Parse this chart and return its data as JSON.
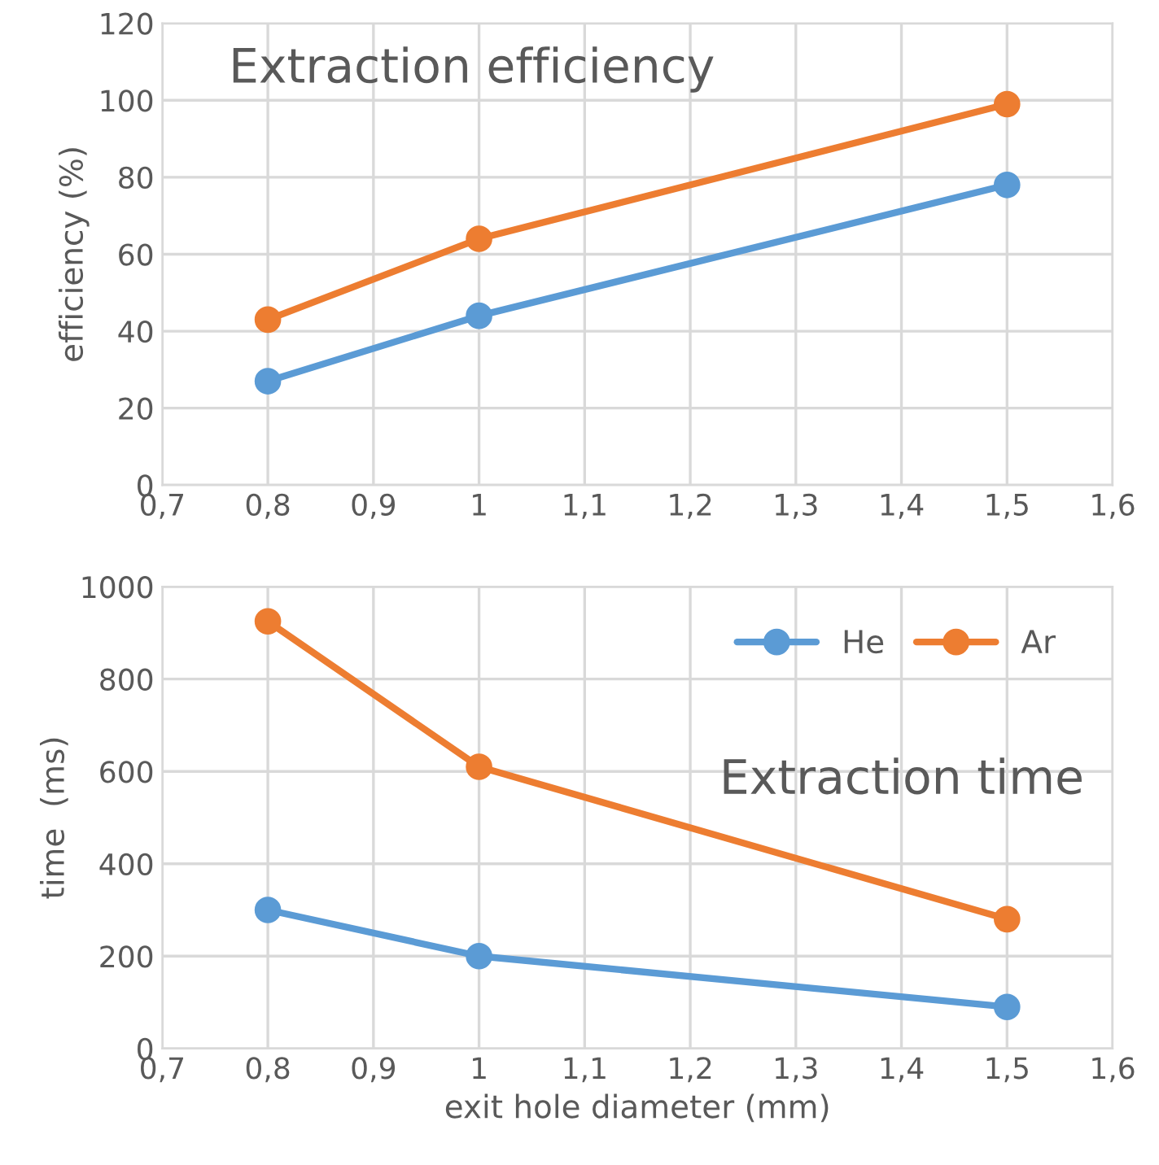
{
  "chart_data": [
    {
      "type": "line",
      "title": "Extraction efficiency",
      "ylabel": "efficiency (%)",
      "x": [
        0.8,
        1,
        1.5
      ],
      "series": [
        {
          "color": "#5b9bd5",
          "values": [
            27,
            44,
            78
          ]
        },
        {
          "color": "#ed7d31",
          "values": [
            43,
            64,
            99
          ]
        }
      ],
      "xlim": [
        0.7,
        1.6
      ],
      "xticks": [
        {
          "value": 0.7,
          "label": "0,7"
        },
        {
          "value": 0.8,
          "label": "0,8"
        },
        {
          "value": 0.9,
          "label": "0,9"
        },
        1,
        {
          "value": 1.1,
          "label": "1,1"
        },
        {
          "value": 1.2,
          "label": "1,2"
        },
        {
          "value": 1.3,
          "label": "1,3"
        },
        {
          "value": 1.4,
          "label": "1,4"
        },
        {
          "value": 1.5,
          "label": "1,5"
        },
        {
          "value": 1.6,
          "label": "1,6"
        }
      ],
      "ylim": [
        0,
        120
      ],
      "yticks": [
        0,
        20,
        40,
        60,
        80,
        100,
        120
      ],
      "grid": true,
      "marker": "circle",
      "line_style": "solid",
      "legend": false
    },
    {
      "type": "line",
      "title": "Extraction time",
      "ylabel": "time  (ms)",
      "xlabel": "exit hole diameter (mm)",
      "x": [
        0.8,
        1,
        1.5
      ],
      "series": [
        {
          "name": "He",
          "color": "#5b9bd5",
          "values": [
            300,
            200,
            90
          ]
        },
        {
          "name": "Ar",
          "color": "#ed7d31",
          "values": [
            925,
            610,
            280
          ]
        }
      ],
      "xlim": [
        0.7,
        1.6
      ],
      "xticks": [
        {
          "value": 0.7,
          "label": "0,7"
        },
        {
          "value": 0.8,
          "label": "0,8"
        },
        {
          "value": 0.9,
          "label": "0,9"
        },
        1,
        {
          "value": 1.1,
          "label": "1,1"
        },
        {
          "value": 1.2,
          "label": "1,2"
        },
        {
          "value": 1.3,
          "label": "1,3"
        },
        {
          "value": 1.4,
          "label": "1,4"
        },
        {
          "value": 1.5,
          "label": "1,5"
        },
        {
          "value": 1.6,
          "label": "1,6"
        }
      ],
      "ylim": [
        0,
        1000
      ],
      "yticks": [
        0,
        200,
        400,
        600,
        800,
        1000
      ],
      "grid": true,
      "marker": "circle",
      "line_style": "solid",
      "legend": "top right"
    }
  ]
}
